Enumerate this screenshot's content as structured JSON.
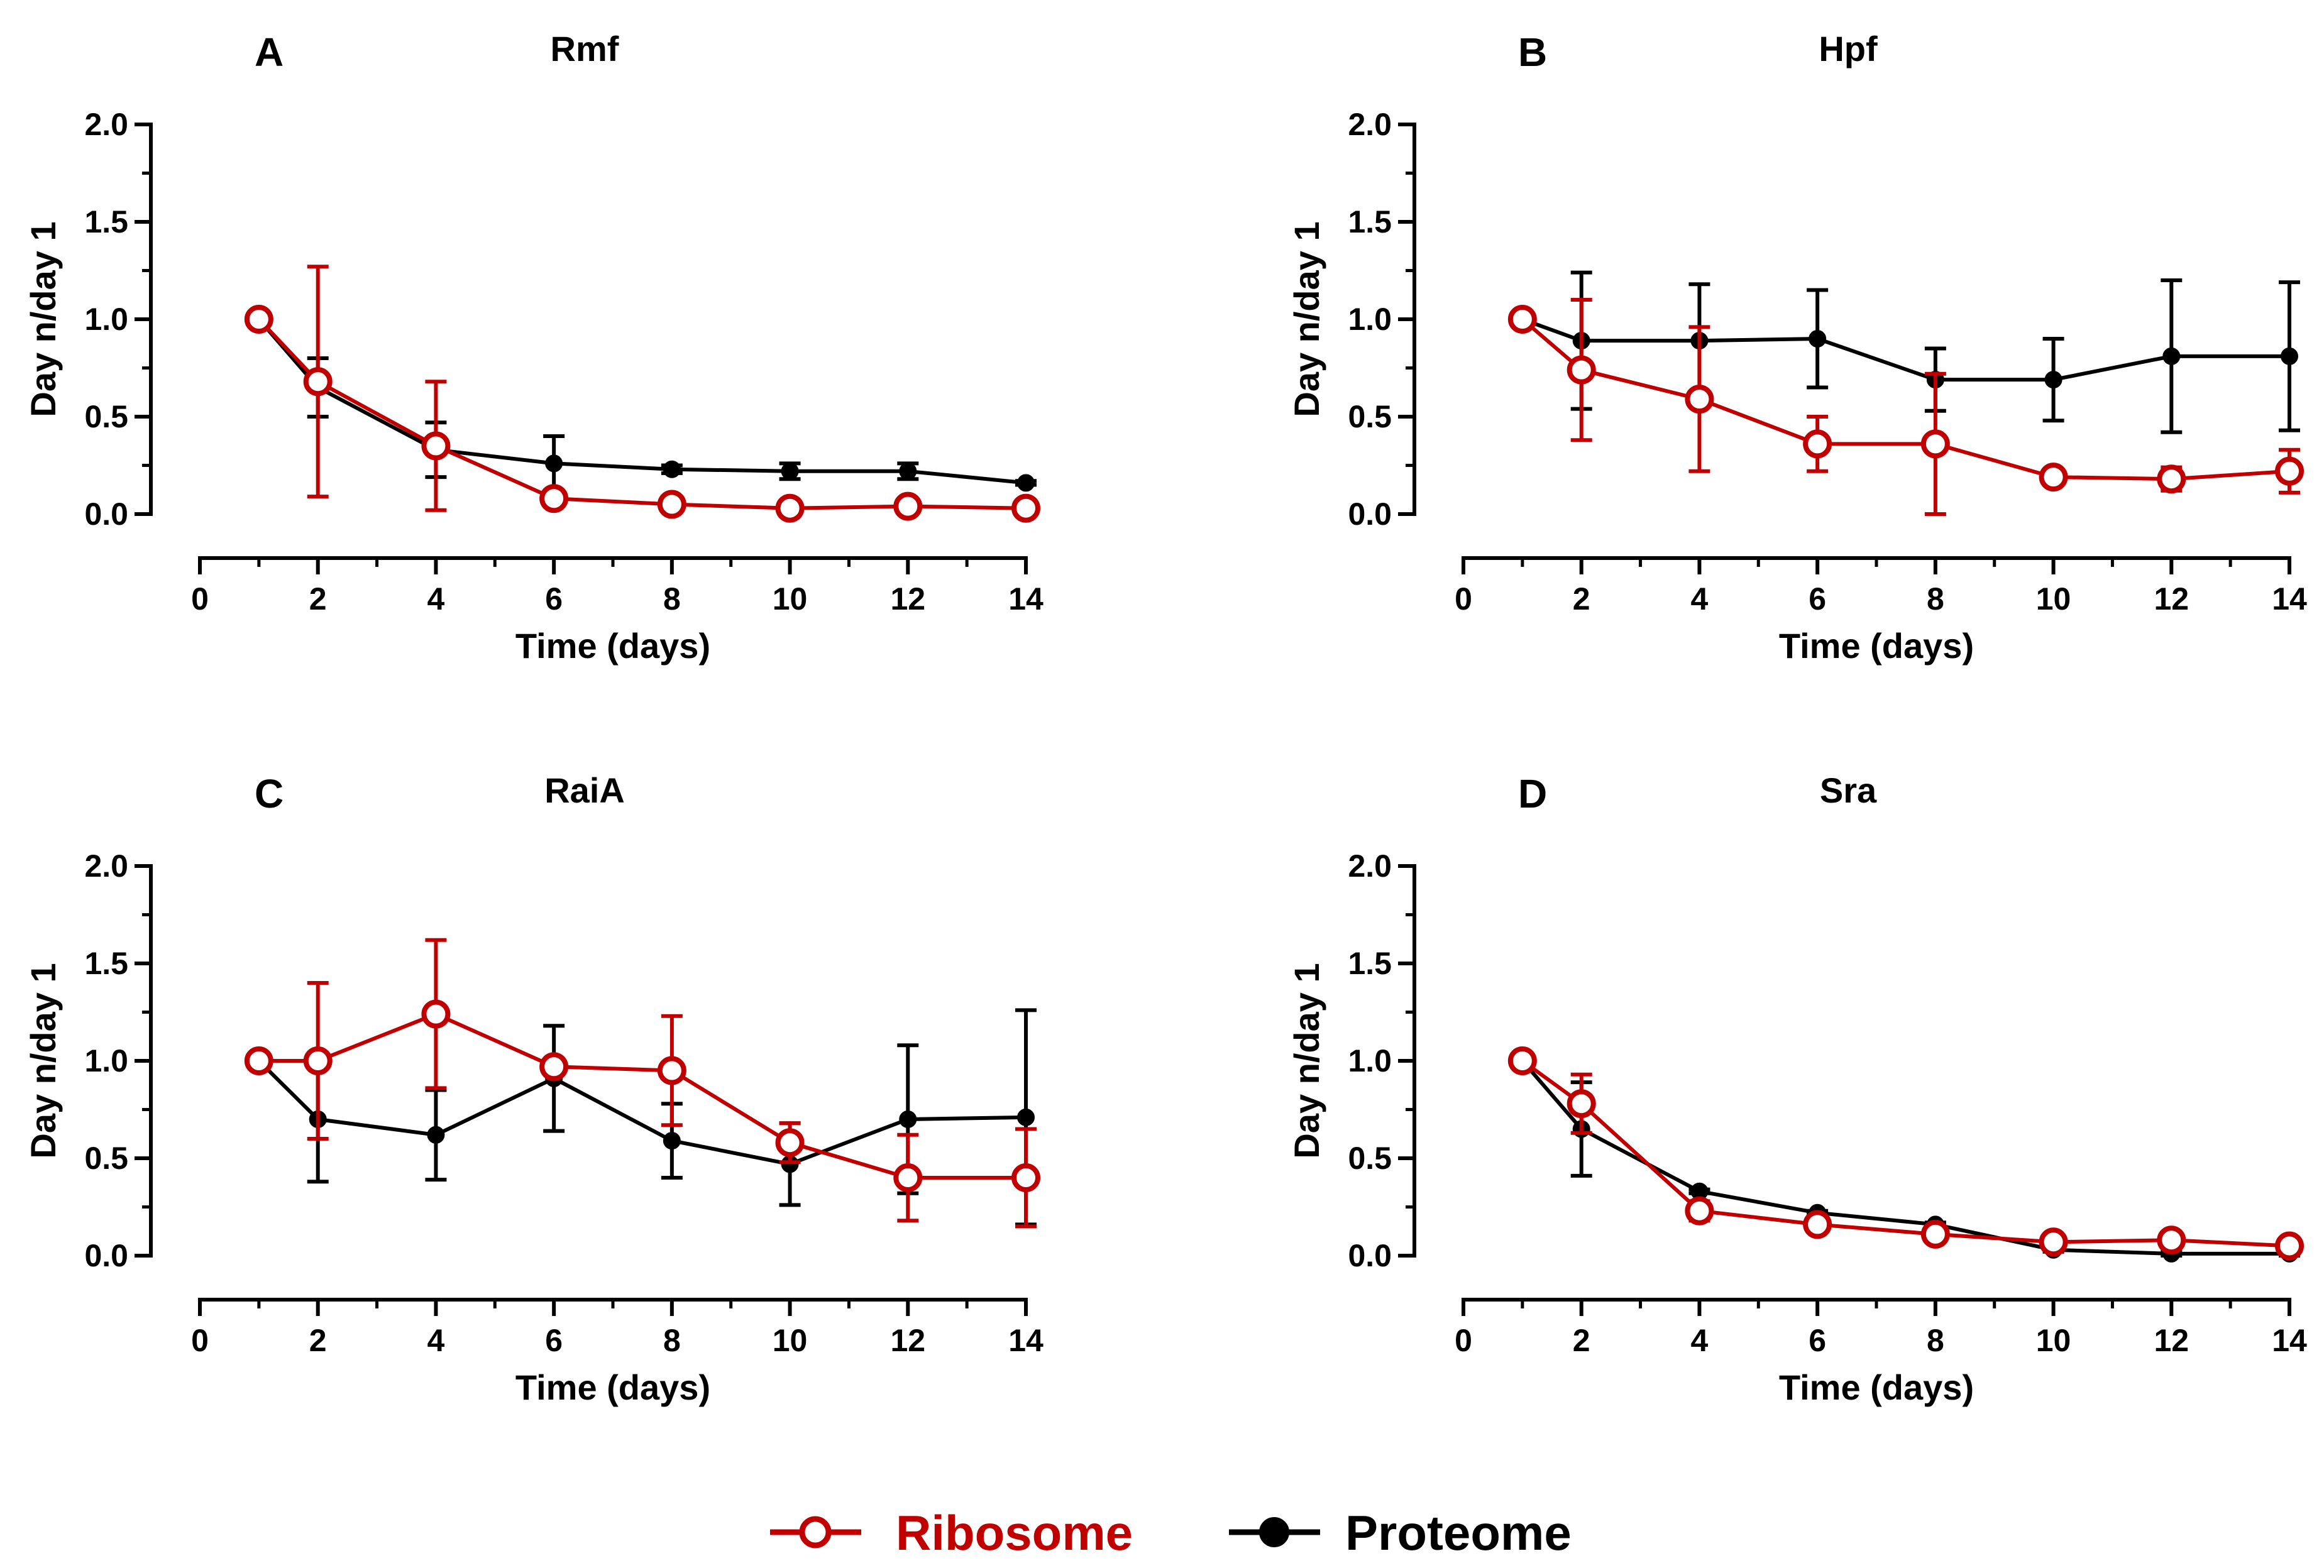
{
  "legend": {
    "ribosome_label": "Ribosome",
    "proteome_label": "Proteome"
  },
  "colors": {
    "ribosome": "#c00000",
    "proteome": "#000000"
  },
  "chart_data": [
    {
      "type": "line",
      "panel": "A",
      "title": "Rmf",
      "xlabel": "Time (days)",
      "ylabel": "Day n/day 1",
      "xlim": [
        0,
        14
      ],
      "ylim": [
        0,
        2.0
      ],
      "xticks": [
        0,
        2,
        4,
        6,
        8,
        10,
        12,
        14
      ],
      "yticks": [
        0.0,
        0.5,
        1.0,
        1.5,
        2.0
      ],
      "xtick_labels": [
        "0",
        "2",
        "4",
        "6",
        "8",
        "10",
        "12",
        "14"
      ],
      "ytick_labels": [
        "0.0",
        "0.5",
        "1.0",
        "1.5",
        "2.0"
      ],
      "grid": false,
      "series": [
        {
          "name": "Ribosome",
          "x": [
            1,
            2,
            4,
            6,
            8,
            10,
            12,
            14
          ],
          "values": [
            1.0,
            0.68,
            0.35,
            0.08,
            0.05,
            0.03,
            0.04,
            0.03
          ],
          "err": [
            0,
            0.59,
            0.33,
            0.02,
            0.02,
            0.01,
            0.01,
            0.01
          ]
        },
        {
          "name": "Proteome",
          "x": [
            1,
            2,
            4,
            6,
            8,
            10,
            12,
            14
          ],
          "values": [
            1.0,
            0.65,
            0.33,
            0.26,
            0.23,
            0.22,
            0.22,
            0.16
          ],
          "err": [
            0,
            0.15,
            0.14,
            0.14,
            0.02,
            0.04,
            0.04,
            0.01
          ]
        }
      ]
    },
    {
      "type": "line",
      "panel": "B",
      "title": "Hpf",
      "xlabel": "Time (days)",
      "ylabel": "Day n/day 1",
      "xlim": [
        0,
        14
      ],
      "ylim": [
        0,
        2.0
      ],
      "xticks": [
        0,
        2,
        4,
        6,
        8,
        10,
        12,
        14
      ],
      "yticks": [
        0.0,
        0.5,
        1.0,
        1.5,
        2.0
      ],
      "xtick_labels": [
        "0",
        "2",
        "4",
        "6",
        "8",
        "10",
        "12",
        "14"
      ],
      "ytick_labels": [
        "0.0",
        "0.5",
        "1.0",
        "1.5",
        "2.0"
      ],
      "grid": false,
      "series": [
        {
          "name": "Ribosome",
          "x": [
            1,
            2,
            4,
            6,
            8,
            10,
            12,
            14
          ],
          "values": [
            1.0,
            0.74,
            0.59,
            0.36,
            0.36,
            0.19,
            0.18,
            0.22
          ],
          "err": [
            0,
            0.36,
            0.37,
            0.14,
            0.36,
            0.04,
            0.06,
            0.11
          ]
        },
        {
          "name": "Proteome",
          "x": [
            1,
            2,
            4,
            6,
            8,
            10,
            12,
            14
          ],
          "values": [
            1.0,
            0.89,
            0.89,
            0.9,
            0.69,
            0.69,
            0.81,
            0.81
          ],
          "err": [
            0,
            0.35,
            0.29,
            0.25,
            0.16,
            0.21,
            0.39,
            0.38
          ]
        }
      ]
    },
    {
      "type": "line",
      "panel": "C",
      "title": "RaiA",
      "xlabel": "Time (days)",
      "ylabel": "Day n/day 1",
      "xlim": [
        0,
        14
      ],
      "ylim": [
        0,
        2.0
      ],
      "xticks": [
        0,
        2,
        4,
        6,
        8,
        10,
        12,
        14
      ],
      "yticks": [
        0.0,
        0.5,
        1.0,
        1.5,
        2.0
      ],
      "xtick_labels": [
        "0",
        "2",
        "4",
        "6",
        "8",
        "10",
        "12",
        "14"
      ],
      "ytick_labels": [
        "0.0",
        "0.5",
        "1.0",
        "1.5",
        "2.0"
      ],
      "grid": false,
      "series": [
        {
          "name": "Ribosome",
          "x": [
            1,
            2,
            4,
            6,
            8,
            10,
            12,
            14
          ],
          "values": [
            1.0,
            1.0,
            1.24,
            0.97,
            0.95,
            0.58,
            0.4,
            0.4
          ],
          "err": [
            0,
            0.4,
            0.38,
            0.04,
            0.28,
            0.1,
            0.22,
            0.25
          ]
        },
        {
          "name": "Proteome",
          "x": [
            1,
            2,
            4,
            6,
            8,
            10,
            12,
            14
          ],
          "values": [
            1.0,
            0.7,
            0.62,
            0.91,
            0.59,
            0.47,
            0.7,
            0.71
          ],
          "err": [
            0,
            0.32,
            0.23,
            0.27,
            0.19,
            0.21,
            0.38,
            0.55
          ]
        }
      ]
    },
    {
      "type": "line",
      "panel": "D",
      "title": "Sra",
      "xlabel": "Time (days)",
      "ylabel": "Day n/day 1",
      "xlim": [
        0,
        14
      ],
      "ylim": [
        0,
        2.0
      ],
      "xticks": [
        0,
        2,
        4,
        6,
        8,
        10,
        12,
        14
      ],
      "yticks": [
        0.0,
        0.5,
        1.0,
        1.5,
        2.0
      ],
      "xtick_labels": [
        "0",
        "2",
        "4",
        "6",
        "8",
        "10",
        "12",
        "14"
      ],
      "ytick_labels": [
        "0.0",
        "0.5",
        "1.0",
        "1.5",
        "2.0"
      ],
      "grid": false,
      "series": [
        {
          "name": "Ribosome",
          "x": [
            1,
            2,
            4,
            6,
            8,
            10,
            12,
            14
          ],
          "values": [
            1.0,
            0.78,
            0.23,
            0.16,
            0.11,
            0.07,
            0.08,
            0.05
          ],
          "err": [
            0,
            0.15,
            0.05,
            0.04,
            0.02,
            0.02,
            0.02,
            0.01
          ]
        },
        {
          "name": "Proteome",
          "x": [
            1,
            2,
            4,
            6,
            8,
            10,
            12,
            14
          ],
          "values": [
            1.0,
            0.65,
            0.33,
            0.22,
            0.16,
            0.03,
            0.01,
            0.01
          ],
          "err": [
            0,
            0.24,
            0.01,
            0.01,
            0.01,
            0.01,
            0.01,
            0.01
          ]
        }
      ]
    }
  ]
}
